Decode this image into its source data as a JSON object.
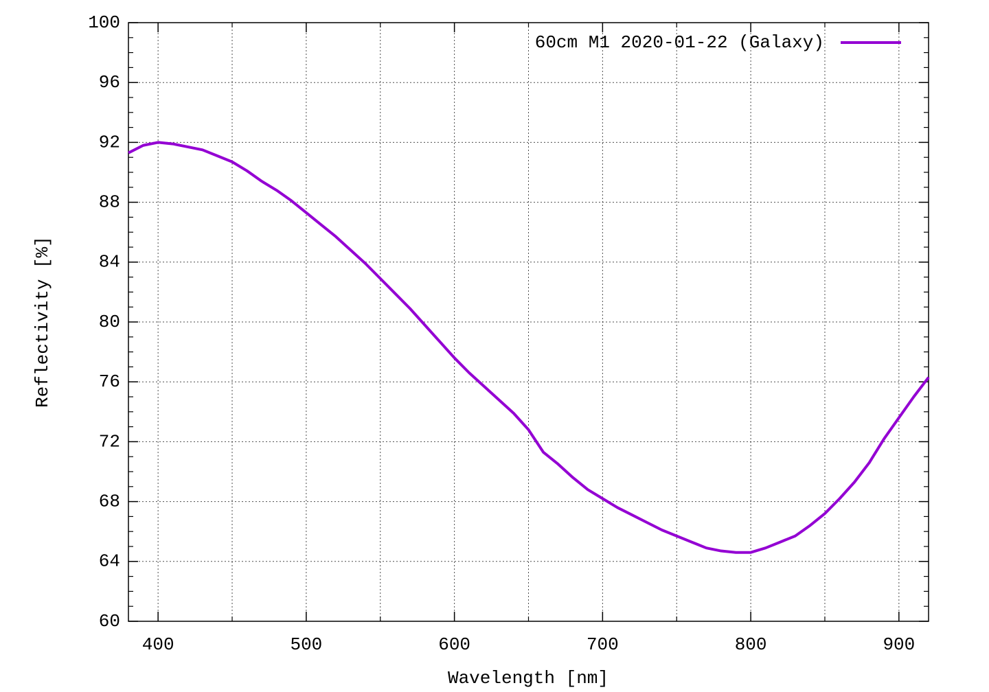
{
  "chart_data": {
    "type": "line",
    "xlabel": "Wavelength [nm]",
    "ylabel": "Reflectivity [%]",
    "x": [
      380,
      390,
      400,
      410,
      420,
      430,
      440,
      450,
      460,
      470,
      480,
      490,
      500,
      510,
      520,
      530,
      540,
      550,
      560,
      570,
      580,
      590,
      600,
      610,
      620,
      630,
      640,
      650,
      660,
      670,
      680,
      690,
      700,
      710,
      720,
      730,
      740,
      750,
      760,
      770,
      780,
      790,
      800,
      810,
      820,
      830,
      840,
      850,
      860,
      870,
      880,
      890,
      900,
      910,
      920
    ],
    "series": [
      {
        "name": "60cm M1 2020-01-22 (Galaxy)",
        "color": "#9400d3",
        "values": [
          91.3,
          91.8,
          92.0,
          91.9,
          91.7,
          91.5,
          91.1,
          90.7,
          90.1,
          89.4,
          88.8,
          88.1,
          87.3,
          86.5,
          85.7,
          84.8,
          83.9,
          82.9,
          81.9,
          80.9,
          79.8,
          78.7,
          77.6,
          76.6,
          75.7,
          74.8,
          73.9,
          72.8,
          71.3,
          70.5,
          69.6,
          68.8,
          68.2,
          67.6,
          67.1,
          66.6,
          66.1,
          65.7,
          65.3,
          64.9,
          64.7,
          64.6,
          64.6,
          64.9,
          65.3,
          65.7,
          66.4,
          67.2,
          68.2,
          69.3,
          70.6,
          72.2,
          73.6,
          75.0,
          76.3
        ]
      }
    ],
    "xlim": [
      380,
      920
    ],
    "xticks": [
      400,
      500,
      600,
      700,
      800,
      900
    ],
    "ylim": [
      60,
      100
    ],
    "yticks": [
      60,
      64,
      68,
      72,
      76,
      80,
      84,
      88,
      92,
      96,
      100
    ],
    "grid": true,
    "x_minor_divisions": 2,
    "y_minor_divisions": 4,
    "legend": "top-right"
  }
}
